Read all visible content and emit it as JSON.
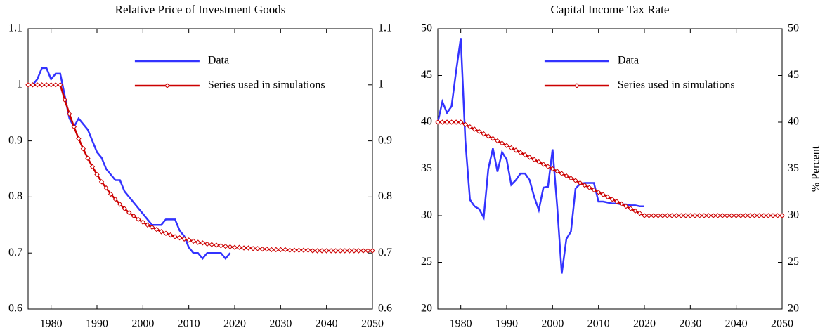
{
  "chart_data": [
    {
      "type": "line",
      "title": "Relative Price of Investment Goods",
      "x": [
        1975,
        1976,
        1977,
        1978,
        1979,
        1980,
        1981,
        1982,
        1983,
        1984,
        1985,
        1986,
        1987,
        1988,
        1989,
        1990,
        1991,
        1992,
        1993,
        1994,
        1995,
        1996,
        1997,
        1998,
        1999,
        2000,
        2001,
        2002,
        2003,
        2004,
        2005,
        2006,
        2007,
        2008,
        2009,
        2010,
        2011,
        2012,
        2013,
        2014,
        2015,
        2016,
        2017,
        2018,
        2019,
        2020,
        2021,
        2022,
        2023,
        2024,
        2025,
        2026,
        2027,
        2028,
        2029,
        2030,
        2031,
        2032,
        2033,
        2034,
        2035,
        2036,
        2037,
        2038,
        2039,
        2040,
        2041,
        2042,
        2043,
        2044,
        2045,
        2046,
        2047,
        2048,
        2049,
        2050
      ],
      "xlim": [
        1975,
        2050
      ],
      "xticks": [
        1980,
        1990,
        2000,
        2010,
        2020,
        2030,
        2040,
        2050
      ],
      "ylim": [
        0.6,
        1.1
      ],
      "yticks": [
        0.6,
        0.7,
        0.8,
        0.9,
        1,
        1.1
      ],
      "y2lim": [
        0.6,
        1.1
      ],
      "y2ticks": [
        0.6,
        0.7,
        0.8,
        0.9,
        1,
        1.1
      ],
      "series": [
        {
          "name": "Data",
          "color": "#3333ff",
          "values": [
            1.0,
            1.0,
            1.01,
            1.03,
            1.03,
            1.01,
            1.02,
            1.02,
            0.98,
            0.94,
            0.925,
            0.94,
            0.93,
            0.92,
            0.9,
            0.88,
            0.87,
            0.85,
            0.84,
            0.83,
            0.83,
            0.81,
            0.8,
            0.79,
            0.78,
            0.77,
            0.76,
            0.75,
            0.75,
            0.75,
            0.76,
            0.76,
            0.76,
            0.74,
            0.73,
            0.71,
            0.7,
            0.7,
            0.69,
            0.7,
            0.7,
            0.7,
            0.7,
            0.69,
            0.7,
            null,
            null,
            null,
            null,
            null,
            null,
            null,
            null,
            null,
            null,
            null,
            null,
            null,
            null,
            null,
            null,
            null,
            null,
            null,
            null,
            null,
            null,
            null,
            null,
            null,
            null,
            null,
            null,
            null,
            null,
            null
          ]
        },
        {
          "name": "Series used in simulations",
          "color": "#cc0000",
          "marker": "diamond",
          "values": [
            1,
            1,
            1,
            1,
            1,
            1,
            1,
            1,
            0.973,
            0.948,
            0.925,
            0.904,
            0.886,
            0.869,
            0.854,
            0.84,
            0.827,
            0.816,
            0.805,
            0.796,
            0.787,
            0.779,
            0.772,
            0.766,
            0.76,
            0.755,
            0.75,
            0.746,
            0.742,
            0.738,
            0.735,
            0.732,
            0.729,
            0.727,
            0.725,
            0.723,
            0.721,
            0.719,
            0.718,
            0.716,
            0.715,
            0.714,
            0.713,
            0.712,
            0.711,
            0.71,
            0.71,
            0.709,
            0.709,
            0.708,
            0.708,
            0.707,
            0.707,
            0.706,
            0.706,
            0.706,
            0.706,
            0.705,
            0.705,
            0.705,
            0.705,
            0.705,
            0.704,
            0.704,
            0.704,
            0.704,
            0.704,
            0.704,
            0.704,
            0.704,
            0.704,
            0.704,
            0.704,
            0.704,
            0.704,
            0.704
          ]
        }
      ]
    },
    {
      "type": "line",
      "title": "Capital Income Tax Rate",
      "y2label": "% Percent",
      "x": [
        1975,
        1976,
        1977,
        1978,
        1979,
        1980,
        1981,
        1982,
        1983,
        1984,
        1985,
        1986,
        1987,
        1988,
        1989,
        1990,
        1991,
        1992,
        1993,
        1994,
        1995,
        1996,
        1997,
        1998,
        1999,
        2000,
        2001,
        2002,
        2003,
        2004,
        2005,
        2006,
        2007,
        2008,
        2009,
        2010,
        2011,
        2012,
        2013,
        2014,
        2015,
        2016,
        2017,
        2018,
        2019,
        2020,
        2021,
        2022,
        2023,
        2024,
        2025,
        2026,
        2027,
        2028,
        2029,
        2030,
        2031,
        2032,
        2033,
        2034,
        2035,
        2036,
        2037,
        2038,
        2039,
        2040,
        2041,
        2042,
        2043,
        2044,
        2045,
        2046,
        2047,
        2048,
        2049,
        2050
      ],
      "xlim": [
        1975,
        2050
      ],
      "xticks": [
        1980,
        1990,
        2000,
        2010,
        2020,
        2030,
        2040,
        2050
      ],
      "ylim": [
        20,
        50
      ],
      "yticks": [
        20,
        25,
        30,
        35,
        40,
        45,
        50
      ],
      "y2lim": [
        20,
        50
      ],
      "y2ticks": [
        20,
        25,
        30,
        35,
        40,
        45,
        50
      ],
      "series": [
        {
          "name": "Data",
          "color": "#3333ff",
          "values": [
            40,
            42.2,
            41,
            41.7,
            45.5,
            49,
            38,
            31.7,
            31,
            30.7,
            29.8,
            35,
            37.2,
            34.7,
            36.8,
            36,
            33.3,
            33.8,
            34.5,
            34.5,
            33.8,
            32,
            30.6,
            33,
            33.1,
            37.1,
            31,
            23.8,
            27.5,
            28.3,
            32.9,
            33.4,
            33.5,
            33.5,
            33.5,
            31.5,
            31.5,
            31.4,
            31.3,
            31.3,
            31.2,
            31.2,
            31.1,
            31.1,
            31.0,
            31.0,
            null,
            null,
            null,
            null,
            null,
            null,
            null,
            null,
            null,
            null,
            null,
            null,
            null,
            null,
            null,
            null,
            null,
            null,
            null,
            null,
            null,
            null,
            null,
            null,
            null,
            null,
            null,
            null,
            null,
            null
          ]
        },
        {
          "name": "Series used in simulations",
          "color": "#cc0000",
          "marker": "diamond",
          "values": [
            40,
            40,
            40,
            40,
            40,
            40,
            39.75,
            39.5,
            39.25,
            39,
            38.75,
            38.5,
            38.25,
            38,
            37.75,
            37.5,
            37.25,
            37,
            36.75,
            36.5,
            36.25,
            36,
            35.75,
            35.5,
            35.25,
            35,
            34.75,
            34.5,
            34.25,
            34,
            33.75,
            33.5,
            33.25,
            33,
            32.75,
            32.5,
            32.25,
            32,
            31.75,
            31.5,
            31.25,
            31,
            30.75,
            30.5,
            30.25,
            30,
            30,
            30,
            30,
            30,
            30,
            30,
            30,
            30,
            30,
            30,
            30,
            30,
            30,
            30,
            30,
            30,
            30,
            30,
            30,
            30,
            30,
            30,
            30,
            30,
            30,
            30,
            30,
            30,
            30,
            30
          ]
        }
      ]
    }
  ]
}
